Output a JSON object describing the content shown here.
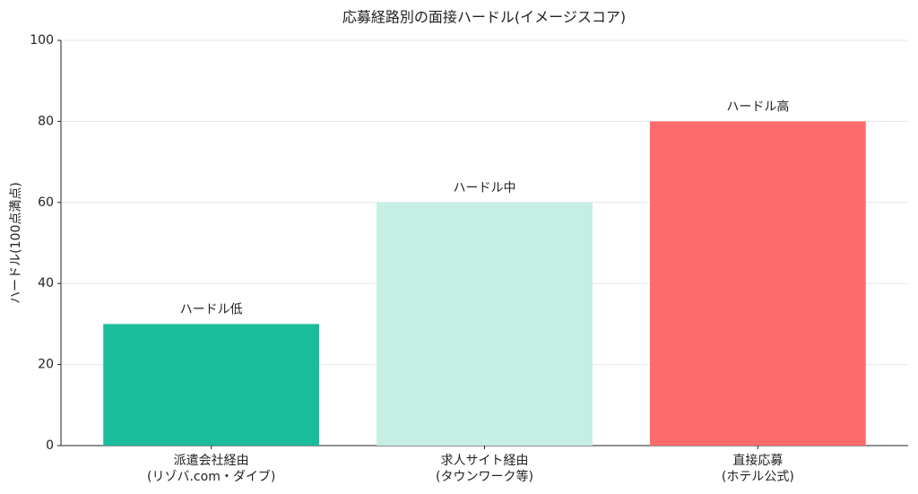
{
  "chart_data": {
    "type": "bar",
    "title": "応募経路別の面接ハードル(イメージスコア)",
    "y_label": "ハードル(100点満点)",
    "categories": [
      "派遣会社経由\n(リゾバ.com・ダイブ)",
      "求人サイト経由\n(タウンワーク等)",
      "直接応募\n(ホテル公式)"
    ],
    "values": [
      30,
      60,
      80
    ],
    "annotations": [
      "ハードル低",
      "ハードル中",
      "ハードル高"
    ],
    "colors": [
      "#1abc9c",
      "#c5efe4",
      "#ff6b6b"
    ],
    "ylim": [
      0,
      100
    ],
    "yticks": [
      0,
      20,
      40,
      60,
      80,
      100
    ],
    "grid": true
  }
}
